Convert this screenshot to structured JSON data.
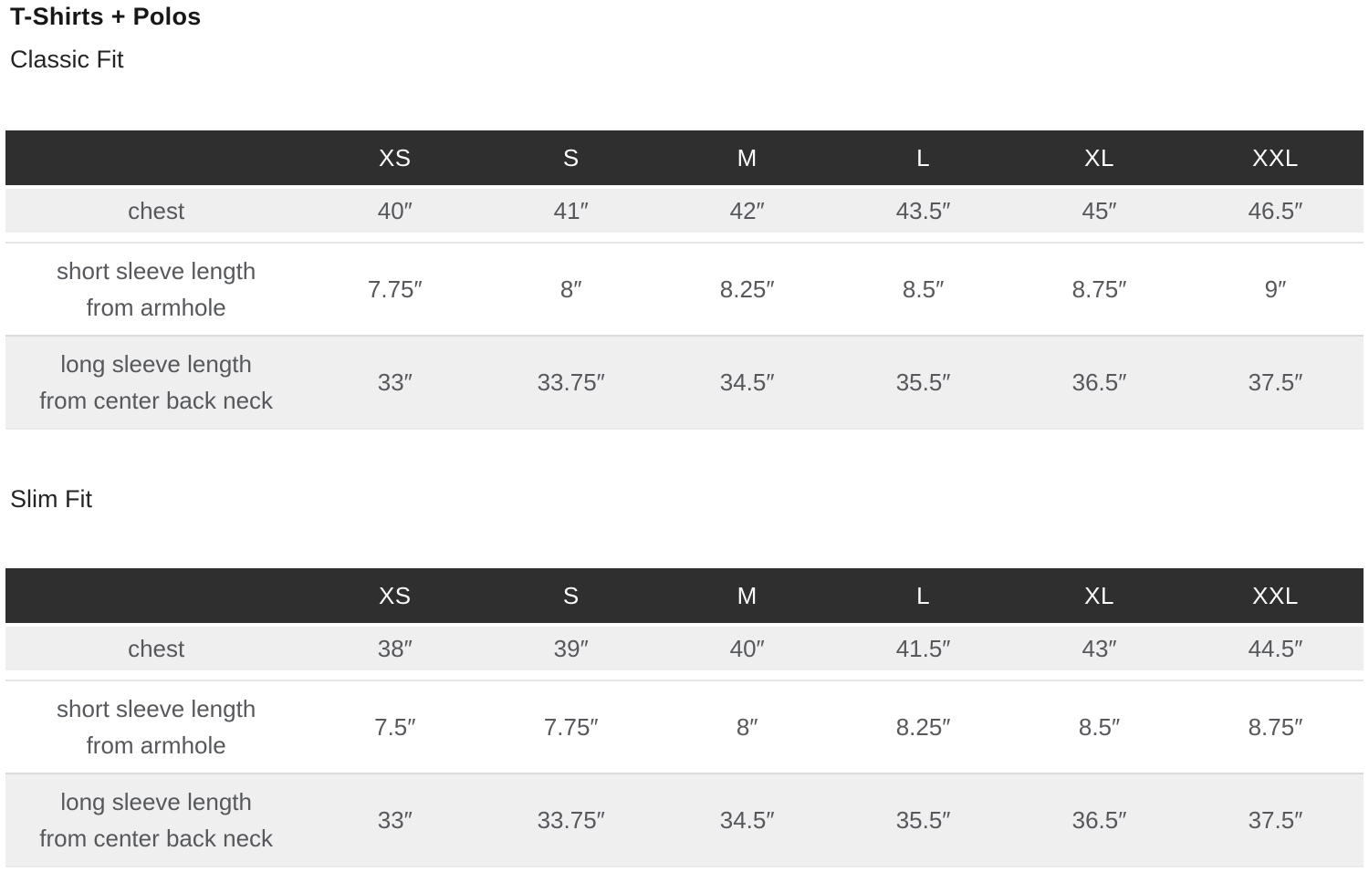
{
  "page": {
    "title": "T-Shirts + Polos"
  },
  "colors": {
    "header_bg": "#2f2f30",
    "header_text": "#fbfbfb",
    "row_gray_bg": "#efefef",
    "row_white_bg": "#ffffff",
    "body_text": "#56585c",
    "title_text": "#171717",
    "row_separator": "#dbdbdb"
  },
  "sections": [
    {
      "label": "Classic Fit",
      "columns": [
        "XS",
        "S",
        "M",
        "L",
        "XL",
        "XXL"
      ],
      "rows": [
        {
          "label_lines": [
            "chest"
          ],
          "values": [
            "40″",
            "41″",
            "42″",
            "43.5″",
            "45″",
            "46.5″"
          ]
        },
        {
          "label_lines": [
            "short sleeve length",
            "from armhole"
          ],
          "values": [
            "7.75″",
            "8″",
            "8.25″",
            "8.5″",
            "8.75″",
            "9″"
          ]
        },
        {
          "label_lines": [
            "long sleeve length",
            "from center back neck"
          ],
          "values": [
            "33″",
            "33.75″",
            "34.5″",
            "35.5″",
            "36.5″",
            "37.5″"
          ]
        }
      ]
    },
    {
      "label": "Slim Fit",
      "columns": [
        "XS",
        "S",
        "M",
        "L",
        "XL",
        "XXL"
      ],
      "rows": [
        {
          "label_lines": [
            "chest"
          ],
          "values": [
            "38″",
            "39″",
            "40″",
            "41.5″",
            "43″",
            "44.5″"
          ]
        },
        {
          "label_lines": [
            "short sleeve length",
            "from armhole"
          ],
          "values": [
            "7.5″",
            "7.75″",
            "8″",
            "8.25″",
            "8.5″",
            "8.75″"
          ]
        },
        {
          "label_lines": [
            "long sleeve length",
            "from center back neck"
          ],
          "values": [
            "33″",
            "33.75″",
            "34.5″",
            "35.5″",
            "36.5″",
            "37.5″"
          ]
        }
      ]
    }
  ],
  "chart_data": [
    {
      "type": "table",
      "title": "T-Shirts + Polos — Classic Fit",
      "columns": [
        "",
        "XS",
        "S",
        "M",
        "L",
        "XL",
        "XXL"
      ],
      "rows": [
        [
          "chest",
          "40″",
          "41″",
          "42″",
          "43.5″",
          "45″",
          "46.5″"
        ],
        [
          "short sleeve length from armhole",
          "7.75″",
          "8″",
          "8.25″",
          "8.5″",
          "8.75″",
          "9″"
        ],
        [
          "long sleeve length from center back neck",
          "33″",
          "33.75″",
          "34.5″",
          "35.5″",
          "36.5″",
          "37.5″"
        ]
      ]
    },
    {
      "type": "table",
      "title": "T-Shirts + Polos — Slim Fit",
      "columns": [
        "",
        "XS",
        "S",
        "M",
        "L",
        "XL",
        "XXL"
      ],
      "rows": [
        [
          "chest",
          "38″",
          "39″",
          "40″",
          "41.5″",
          "43″",
          "44.5″"
        ],
        [
          "short sleeve length from armhole",
          "7.5″",
          "7.75″",
          "8″",
          "8.25″",
          "8.5″",
          "8.75″"
        ],
        [
          "long sleeve length from center back neck",
          "33″",
          "33.75″",
          "34.5″",
          "35.5″",
          "36.5″",
          "37.5″"
        ]
      ]
    }
  ]
}
